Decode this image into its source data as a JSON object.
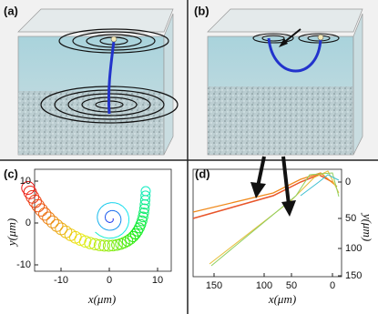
{
  "panels": [
    {
      "label": "(a)"
    },
    {
      "label": "(b)"
    },
    {
      "label": "(c)",
      "x_label": "x(μm)",
      "y_label": "y(μm)",
      "x_ticks": [
        -10,
        0,
        10
      ],
      "y_ticks": [
        10,
        0,
        -10
      ]
    },
    {
      "label": "(d)",
      "x_label": "x(μm)",
      "y_label": "y(μm)",
      "x_ticks": [
        150,
        100,
        50,
        0
      ],
      "y_ticks": [
        0,
        50,
        100,
        150
      ]
    }
  ]
}
